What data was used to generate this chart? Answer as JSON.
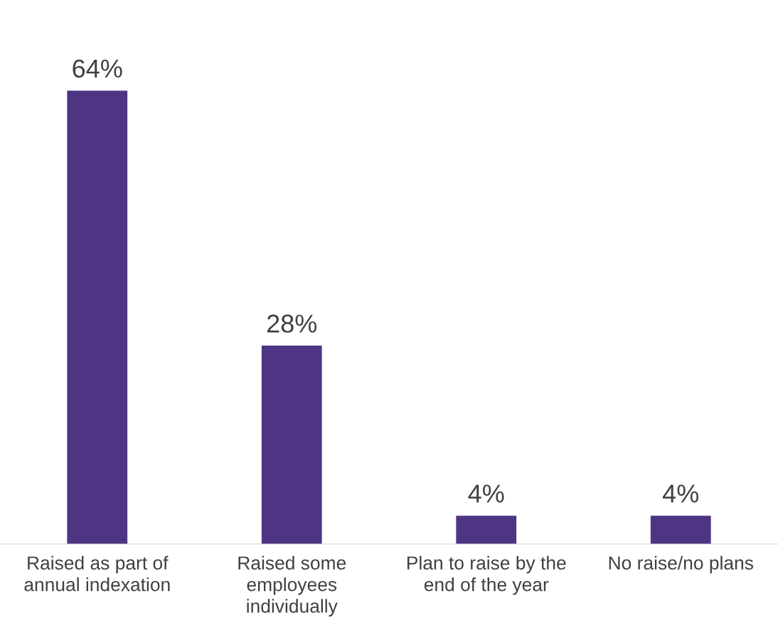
{
  "chart_data": {
    "type": "bar",
    "categories": [
      "Raised as part of\nannual indexation",
      "Raised some\nemployees\nindividually",
      "Plan to raise by the\nend of the year",
      "No raise/no plans"
    ],
    "values": [
      64,
      28,
      4,
      4
    ],
    "value_labels": [
      "64%",
      "28%",
      "4%",
      "4%"
    ],
    "color": "#4e3584",
    "grid": false,
    "legend": false
  }
}
